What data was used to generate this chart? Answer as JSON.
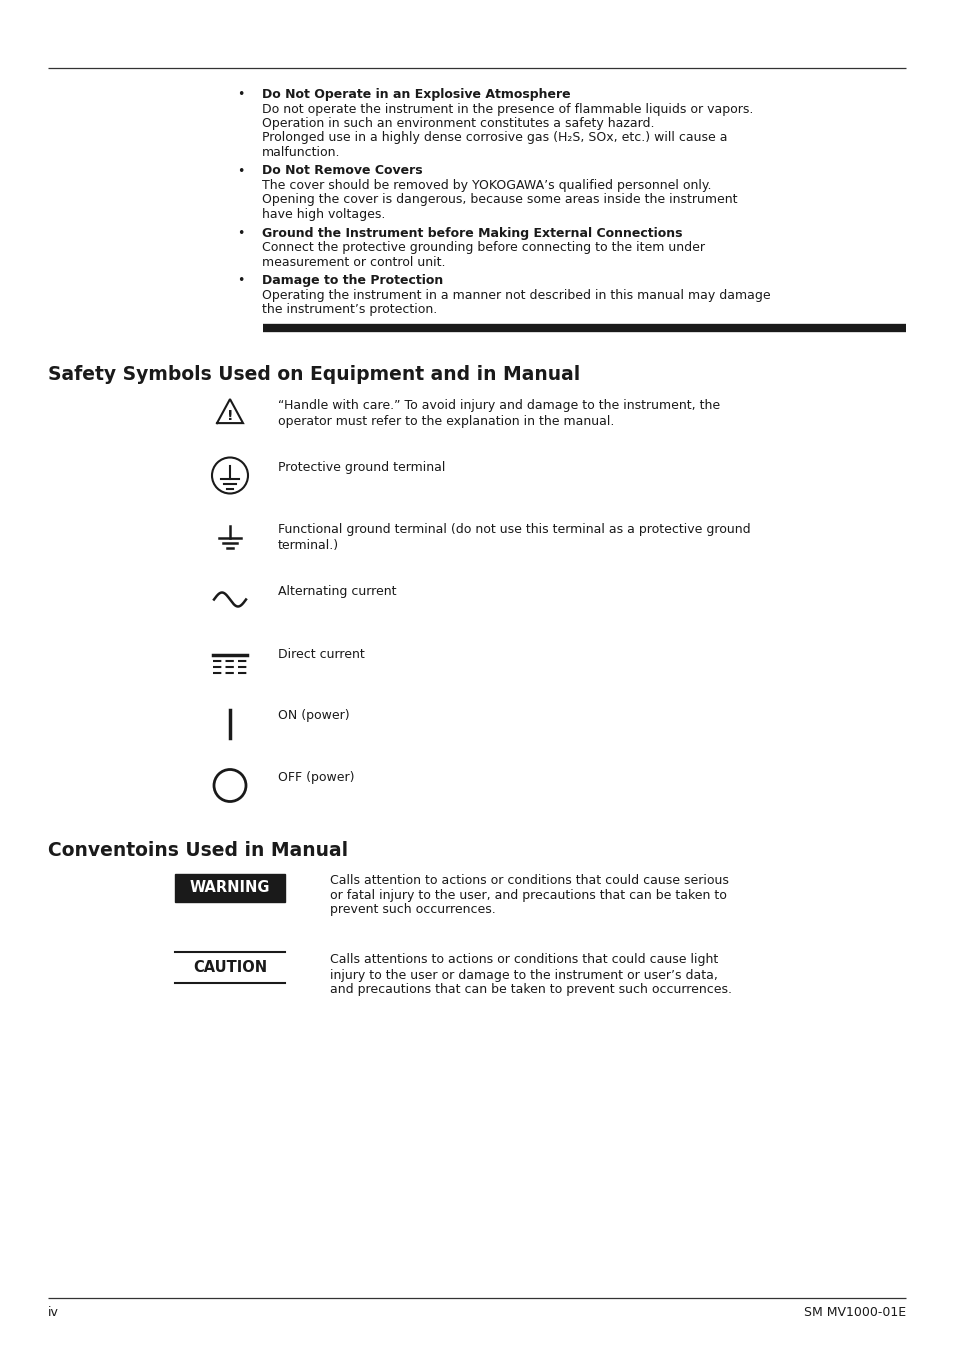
{
  "bg_color": "#ffffff",
  "text_color": "#1a1a1a",
  "page_width": 9.54,
  "page_height": 13.5,
  "dpi": 100,
  "footer_left": "iv",
  "footer_right": "SM MV1000-01E",
  "section1_title": "Safety Symbols Used on Equipment and in Manual",
  "section2_title": "Conventoins Used in Manual",
  "bullets": [
    {
      "bold": "Do Not Operate in an Explosive Atmosphere",
      "normal_lines": [
        "Do not operate the instrument in the presence of flammable liquids or vapors.",
        "Operation in such an environment constitutes a safety hazard.",
        "Prolonged use in a highly dense corrosive gas (H₂S, SOx, etc.) will cause a",
        "malfunction."
      ]
    },
    {
      "bold": "Do Not Remove Covers",
      "normal_lines": [
        "The cover should be removed by YOKOGAWA’s qualified personnel only.",
        "Opening the cover is dangerous, because some areas inside the instrument",
        "have high voltages."
      ]
    },
    {
      "bold": "Ground the Instrument before Making External Connections",
      "normal_lines": [
        "Connect the protective grounding before connecting to the item under",
        "measurement or control unit."
      ]
    },
    {
      "bold": "Damage to the Protection",
      "normal_lines": [
        "Operating the instrument in a manner not described in this manual may damage",
        "the instrument’s protection."
      ]
    }
  ],
  "symbols": [
    {
      "type": "triangle_warning",
      "text": "“Handle with care.” To avoid injury and damage to the instrument, the\noperator must refer to the explanation in the manual."
    },
    {
      "type": "protective_ground",
      "text": "Protective ground terminal"
    },
    {
      "type": "functional_ground",
      "text": "Functional ground terminal (do not use this terminal as a protective ground\nterminal.)"
    },
    {
      "type": "ac_current",
      "text": "Alternating current"
    },
    {
      "type": "dc_current",
      "text": "Direct current"
    },
    {
      "type": "on_power",
      "text": "ON (power)"
    },
    {
      "type": "off_power",
      "text": "OFF (power)"
    }
  ],
  "conventions": [
    {
      "type": "warning_box",
      "label": "WARNING",
      "text": "Calls attention to actions or conditions that could cause serious\nor fatal injury to the user, and precautions that can be taken to\nprevent such occurrences."
    },
    {
      "type": "caution_box",
      "label": "CAUTION",
      "text": "Calls attentions to actions or conditions that could cause light\ninjury to the user or damage to the instrument or user’s data,\nand precautions that can be taken to prevent such occurrences."
    }
  ]
}
